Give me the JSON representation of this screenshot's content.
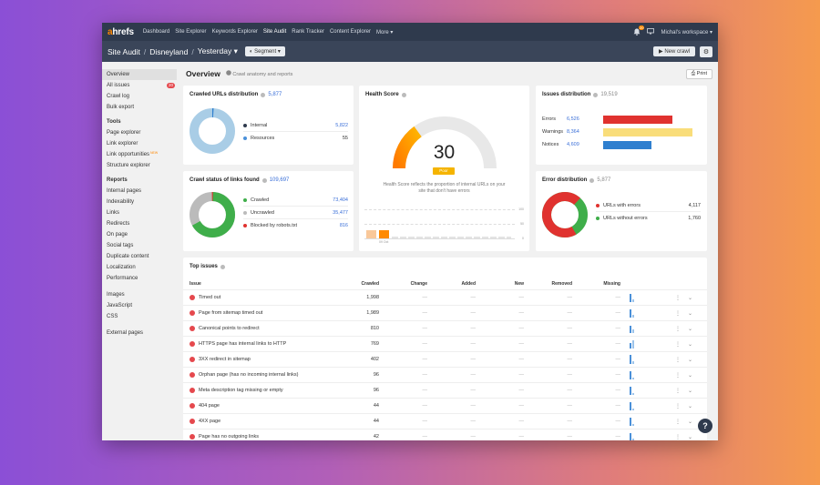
{
  "topbar": {
    "logo_a": "a",
    "logo_rest": "hrefs",
    "nav": [
      "Dashboard",
      "Site Explorer",
      "Keywords Explorer",
      "Site Audit",
      "Rank Tracker",
      "Content Explorer",
      "More ▾"
    ],
    "notif_count": "20",
    "workspace": "Michal's workspace ▾"
  },
  "subbar": {
    "crumbs": [
      "Site Audit",
      "Disneyland",
      "Yesterday ▾"
    ],
    "segment": "◐ Segment ▾",
    "new_crawl": "▶ New crawl",
    "settings_icon": "⚙"
  },
  "sidebar": {
    "top": [
      "Overview",
      "All issues",
      "Crawl log",
      "Bulk export"
    ],
    "all_issues_badge": "20",
    "tools_head": "Tools",
    "tools": [
      "Page explorer",
      "Link explorer",
      "Link opportunities",
      "Structure explorer"
    ],
    "new_badge": "NEW",
    "reports_head": "Reports",
    "reports": [
      "Internal pages",
      "Indexability",
      "Links",
      "Redirects",
      "On page",
      "Social tags",
      "Duplicate content",
      "Localization",
      "Performance"
    ],
    "resources": [
      "Images",
      "JavaScript",
      "CSS"
    ],
    "external": "External pages"
  },
  "overview": {
    "title": "Overview",
    "subtitle": "Crawl anatomy and reports",
    "print": "⎙ Print"
  },
  "crawled_urls": {
    "title": "Crawled URLs distribution",
    "count": "5,877",
    "rows": [
      {
        "label": "Internal",
        "value": "5,822",
        "color": "#2f3a4d"
      },
      {
        "label": "Resources",
        "value": "55",
        "color": "#4a90d9"
      }
    ]
  },
  "health": {
    "title": "Health Score",
    "score": "30",
    "badge": "Poor",
    "gauge_fraction": 0.3,
    "desc1": "Health Score reflects the proportion of internal URLs on your",
    "desc2": "site that don't have errors",
    "axis": [
      "100",
      "50",
      "0"
    ],
    "date": "09 Oct"
  },
  "issues_dist": {
    "title": "Issues distribution",
    "count": "19,519",
    "rows": [
      {
        "label": "Errors",
        "value": "6,526",
        "color": "#e0322f",
        "fraction": 0.7
      },
      {
        "label": "Warnings",
        "value": "8,364",
        "color": "#f9dd7a",
        "fraction": 0.9
      },
      {
        "label": "Notices",
        "value": "4,609",
        "color": "#2f7fcf",
        "fraction": 0.49
      }
    ]
  },
  "crawl_status": {
    "title": "Crawl status of links found",
    "count": "109,697",
    "rows": [
      {
        "label": "Crawled",
        "value": "73,404",
        "color": "#3fae4a"
      },
      {
        "label": "Uncrawled",
        "value": "35,477",
        "color": "#bbbbbb"
      },
      {
        "label": "Blocked by robots.txt",
        "value": "816",
        "color": "#e0322f"
      }
    ]
  },
  "error_dist": {
    "title": "Error distribution",
    "count": "5,877",
    "rows": [
      {
        "label": "URLs with errors",
        "value": "4,117",
        "color": "#e0322f"
      },
      {
        "label": "URLs without errors",
        "value": "1,760",
        "color": "#3fae4a"
      }
    ]
  },
  "top_issues": {
    "title": "Top issues",
    "headers": [
      "Issue",
      "Crawled",
      "Change",
      "Added",
      "New",
      "Removed",
      "Missing"
    ],
    "dash": "—",
    "rows": [
      {
        "issue": "Timed out",
        "crawled": "1,998"
      },
      {
        "issue": "Page from sitemap timed out",
        "crawled": "1,989"
      },
      {
        "issue": "Canonical points to redirect",
        "crawled": "810"
      },
      {
        "issue": "HTTPS page has internal links to HTTP",
        "crawled": "769"
      },
      {
        "issue": "3XX redirect in sitemap",
        "crawled": "402"
      },
      {
        "issue": "Orphan page (has no incoming internal links)",
        "crawled": "96"
      },
      {
        "issue": "Meta description tag missing or empty",
        "crawled": "96"
      },
      {
        "issue": "404 page",
        "crawled": "44"
      },
      {
        "issue": "4XX page",
        "crawled": "44"
      },
      {
        "issue": "Page has no outgoing links",
        "crawled": "42"
      }
    ]
  },
  "help": "?"
}
